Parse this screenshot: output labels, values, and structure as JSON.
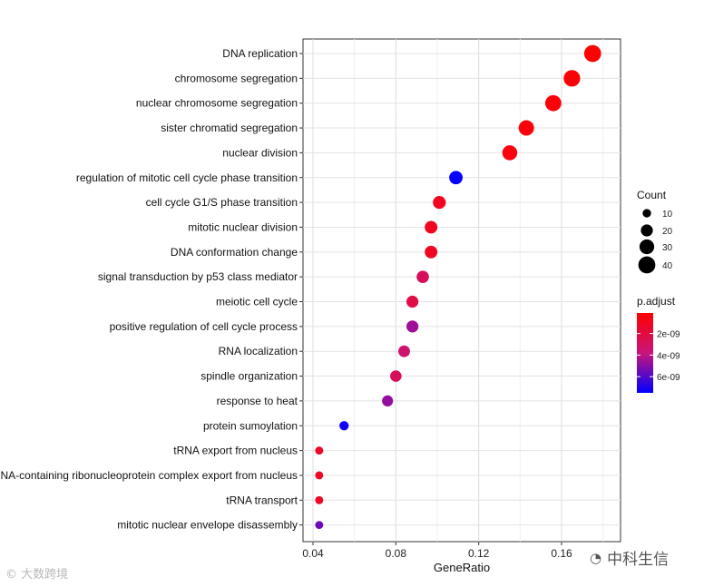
{
  "chart_data": {
    "type": "scatter",
    "title": "",
    "xlabel": "GeneRatio",
    "ylabel": "",
    "xlim": [
      0.035,
      0.18
    ],
    "xticks": [
      "0.04",
      "0.08",
      "0.12",
      "0.16"
    ],
    "xtick_values": [
      0.04,
      0.08,
      0.12,
      0.16
    ],
    "grid": true,
    "size_legend": {
      "title": "Count",
      "values": [
        10,
        20,
        30,
        40
      ],
      "labels": [
        "10",
        "20",
        "30",
        "40"
      ]
    },
    "color_legend": {
      "title": "p.adjust",
      "range": [
        1e-10,
        7.5e-09
      ],
      "ticks": [
        2e-09,
        4e-09,
        6e-09
      ],
      "labels": [
        "2e-09",
        "4e-09",
        "6e-09"
      ],
      "low_color": "#ff0000",
      "high_color": "#0000ff"
    },
    "points": [
      {
        "term": "DNA replication",
        "gene_ratio": 0.175,
        "count": 40,
        "p_adjust": 2e-10
      },
      {
        "term": "chromosome segregation",
        "gene_ratio": 0.165,
        "count": 38,
        "p_adjust": 3e-10
      },
      {
        "term": "nuclear chromosome segregation",
        "gene_ratio": 0.156,
        "count": 36,
        "p_adjust": 4e-10
      },
      {
        "term": "sister chromatid segregation",
        "gene_ratio": 0.143,
        "count": 33,
        "p_adjust": 4e-10
      },
      {
        "term": "nuclear division",
        "gene_ratio": 0.135,
        "count": 31,
        "p_adjust": 5e-10
      },
      {
        "term": "regulation of mitotic cell cycle phase transition",
        "gene_ratio": 0.109,
        "count": 25,
        "p_adjust": 7.4e-09
      },
      {
        "term": "cell cycle G1/S phase transition",
        "gene_ratio": 0.101,
        "count": 23,
        "p_adjust": 1e-09
      },
      {
        "term": "mitotic nuclear division",
        "gene_ratio": 0.097,
        "count": 22,
        "p_adjust": 1e-09
      },
      {
        "term": "DNA conformation change",
        "gene_ratio": 0.097,
        "count": 22,
        "p_adjust": 1.1e-09
      },
      {
        "term": "signal transduction by p53 class mediator",
        "gene_ratio": 0.093,
        "count": 21,
        "p_adjust": 2.8e-09
      },
      {
        "term": "meiotic cell cycle",
        "gene_ratio": 0.088,
        "count": 20,
        "p_adjust": 2.2e-09
      },
      {
        "term": "positive regulation of cell cycle process",
        "gene_ratio": 0.088,
        "count": 20,
        "p_adjust": 4.6e-09
      },
      {
        "term": "RNA localization",
        "gene_ratio": 0.084,
        "count": 19,
        "p_adjust": 3.4e-09
      },
      {
        "term": "spindle organization",
        "gene_ratio": 0.08,
        "count": 18,
        "p_adjust": 2.8e-09
      },
      {
        "term": "response to heat",
        "gene_ratio": 0.076,
        "count": 17,
        "p_adjust": 4.8e-09
      },
      {
        "term": "protein sumoylation",
        "gene_ratio": 0.055,
        "count": 12,
        "p_adjust": 7.2e-09
      },
      {
        "term": "tRNA export from nucleus",
        "gene_ratio": 0.043,
        "count": 9,
        "p_adjust": 1.3e-09
      },
      {
        "term": "RNA-containing ribonucleoprotein complex export from nucleus",
        "gene_ratio": 0.043,
        "count": 9,
        "p_adjust": 1.3e-09
      },
      {
        "term": "tRNA transport",
        "gene_ratio": 0.043,
        "count": 9,
        "p_adjust": 1.3e-09
      },
      {
        "term": "mitotic nuclear envelope disassembly",
        "gene_ratio": 0.043,
        "count": 9,
        "p_adjust": 5.5e-09
      }
    ]
  },
  "watermarks": {
    "left": "大数跨境",
    "right": "中科生信"
  }
}
